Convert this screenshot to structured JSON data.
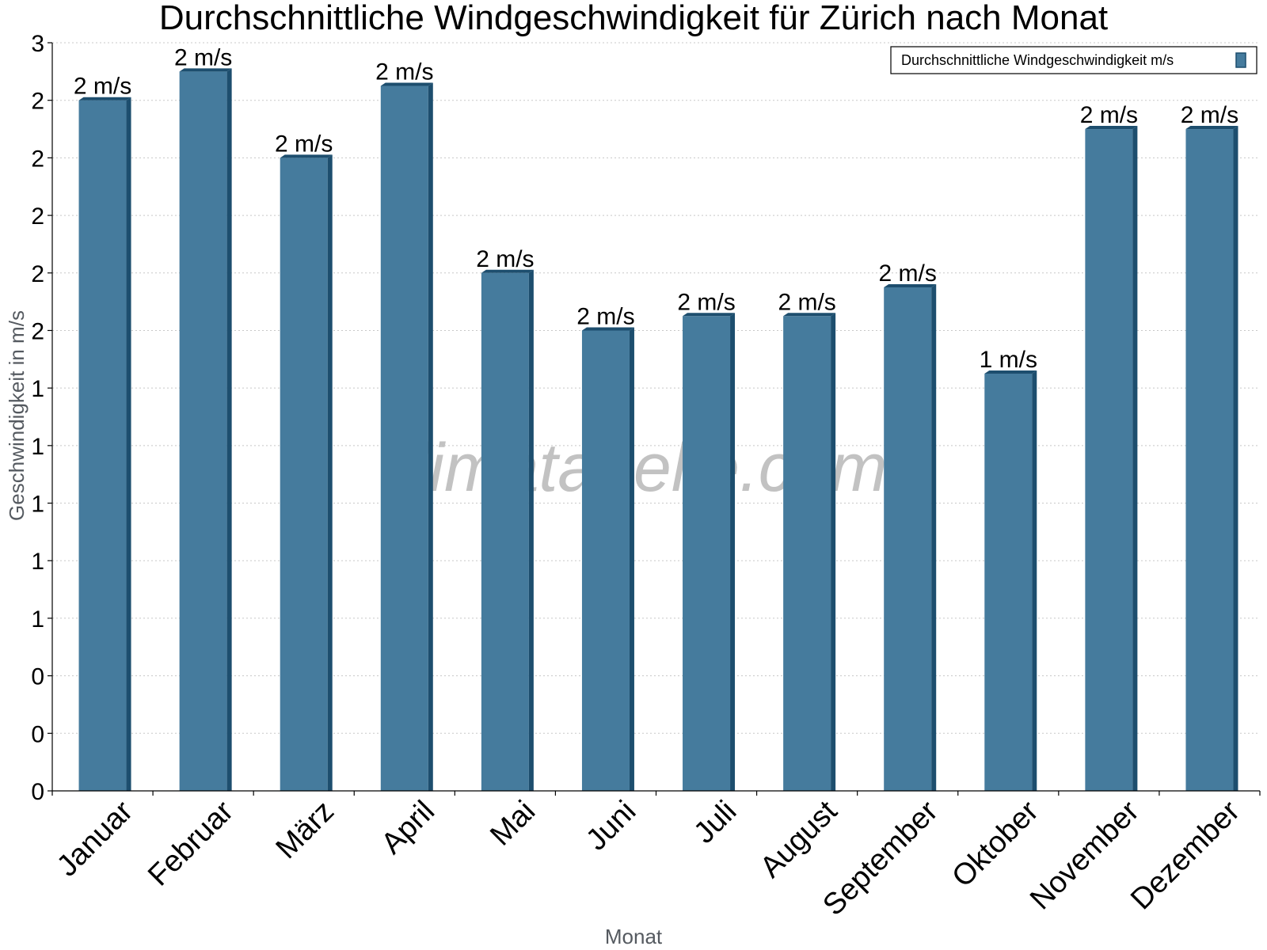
{
  "chart_data": {
    "type": "bar",
    "title": "Durchschnittliche Windgeschwindigkeit für Zürich nach Monat",
    "xlabel": "Monat",
    "ylabel": "Geschwindigkeit in m/s",
    "categories": [
      "Januar",
      "Februar",
      "März",
      "April",
      "Mai",
      "Juni",
      "Juli",
      "August",
      "September",
      "Oktober",
      "November",
      "Dezember"
    ],
    "series": [
      {
        "name": "Durchschnittliche Windgeschwindigkeit m/s",
        "values": [
          2.4,
          2.5,
          2.2,
          2.45,
          1.8,
          1.6,
          1.65,
          1.65,
          1.75,
          1.45,
          2.3,
          2.3
        ],
        "labels": [
          "2 m/s",
          "2 m/s",
          "2 m/s",
          "2 m/s",
          "2 m/s",
          "2 m/s",
          "2 m/s",
          "2 m/s",
          "2 m/s",
          "1 m/s",
          "2 m/s",
          "2 m/s"
        ],
        "color": "#457b9d"
      }
    ],
    "ylim": [
      0,
      2.6
    ],
    "yticks": [
      0,
      0.2,
      0.4,
      0.6,
      0.8,
      1.0,
      1.2,
      1.4,
      1.6,
      1.8,
      2.0,
      2.2,
      2.4,
      2.6
    ],
    "ytick_labels": [
      "0",
      "0",
      "0",
      "1",
      "1",
      "1",
      "1",
      "1",
      "2",
      "2",
      "2",
      "2",
      "2",
      "3"
    ],
    "grid": true,
    "legend": "top-right",
    "watermark": "klimatabelle.com",
    "colors": {
      "bar": "#457b9d",
      "bar_side": "#1d4e6e",
      "grid": "#c8c8c8",
      "axis": "#000000"
    }
  }
}
